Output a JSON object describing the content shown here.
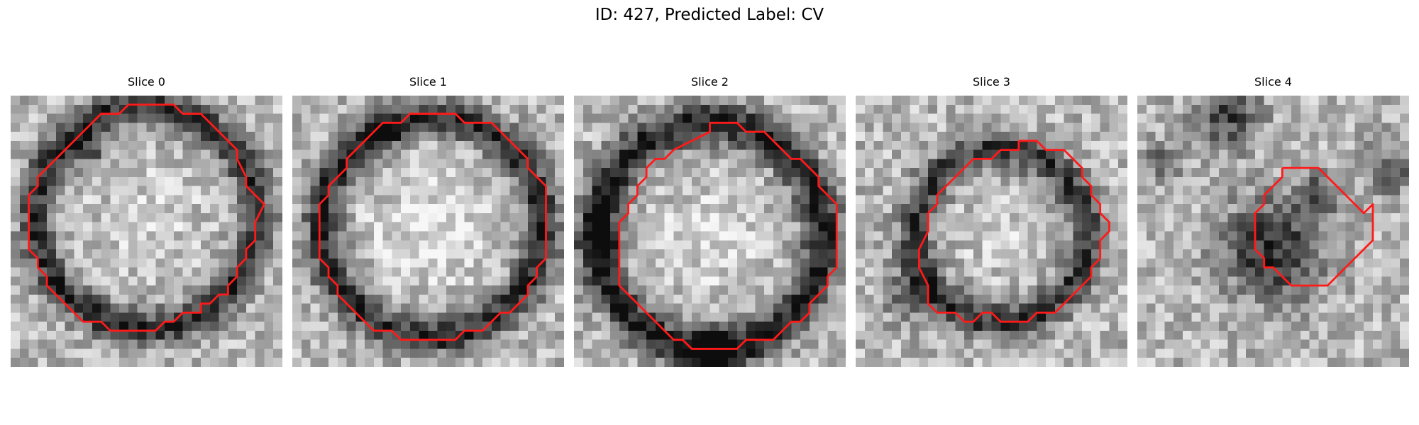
{
  "figure": {
    "title": "ID: 427, Predicted Label: CV"
  },
  "panels": [
    {
      "title": "Slice 0",
      "contour": [
        [
          15,
          1
        ],
        [
          18,
          1
        ],
        [
          19,
          2
        ],
        [
          21,
          2
        ],
        [
          24,
          5
        ],
        [
          25,
          6
        ],
        [
          25,
          7
        ],
        [
          26,
          9
        ],
        [
          26,
          10
        ],
        [
          27,
          11
        ],
        [
          28,
          12
        ],
        [
          27,
          14
        ],
        [
          27,
          15
        ],
        [
          27,
          16
        ],
        [
          26,
          17
        ],
        [
          26,
          18
        ],
        [
          25,
          19
        ],
        [
          25,
          20
        ],
        [
          24,
          21
        ],
        [
          24,
          22
        ],
        [
          23,
          22
        ],
        [
          22,
          23
        ],
        [
          21,
          23
        ],
        [
          21,
          24
        ],
        [
          19,
          24
        ],
        [
          18,
          25
        ],
        [
          17,
          25
        ],
        [
          16,
          26
        ],
        [
          11,
          26
        ],
        [
          10,
          25
        ],
        [
          8,
          25
        ],
        [
          7,
          24
        ],
        [
          6,
          23
        ],
        [
          5,
          22
        ],
        [
          4,
          21
        ],
        [
          4,
          20
        ],
        [
          3,
          19
        ],
        [
          3,
          18
        ],
        [
          2,
          17
        ],
        [
          2,
          15
        ],
        [
          2,
          13
        ],
        [
          2,
          11
        ],
        [
          3,
          10
        ],
        [
          3,
          9
        ],
        [
          4,
          8
        ],
        [
          5,
          7
        ],
        [
          6,
          6
        ],
        [
          7,
          5
        ],
        [
          8,
          4
        ],
        [
          9,
          3
        ],
        [
          10,
          2
        ],
        [
          12,
          2
        ],
        [
          13,
          1
        ],
        [
          15,
          1
        ]
      ]
    },
    {
      "title": "Slice 1",
      "contour": [
        [
          14,
          2
        ],
        [
          18,
          2
        ],
        [
          19,
          3
        ],
        [
          22,
          3
        ],
        [
          23,
          4
        ],
        [
          24,
          5
        ],
        [
          25,
          6
        ],
        [
          26,
          7
        ],
        [
          26,
          8
        ],
        [
          27,
          9
        ],
        [
          28,
          10
        ],
        [
          28,
          11
        ],
        [
          28,
          13
        ],
        [
          28,
          16
        ],
        [
          28,
          18
        ],
        [
          27,
          19
        ],
        [
          27,
          20
        ],
        [
          26,
          21
        ],
        [
          26,
          22
        ],
        [
          25,
          23
        ],
        [
          24,
          24
        ],
        [
          23,
          24
        ],
        [
          22,
          25
        ],
        [
          21,
          26
        ],
        [
          19,
          26
        ],
        [
          18,
          27
        ],
        [
          14,
          27
        ],
        [
          12,
          27
        ],
        [
          11,
          26
        ],
        [
          9,
          26
        ],
        [
          8,
          25
        ],
        [
          7,
          24
        ],
        [
          6,
          23
        ],
        [
          5,
          22
        ],
        [
          5,
          21
        ],
        [
          4,
          20
        ],
        [
          4,
          19
        ],
        [
          3,
          18
        ],
        [
          3,
          16
        ],
        [
          3,
          14
        ],
        [
          3,
          12
        ],
        [
          4,
          11
        ],
        [
          4,
          10
        ],
        [
          5,
          9
        ],
        [
          6,
          8
        ],
        [
          6,
          7
        ],
        [
          7,
          6
        ],
        [
          8,
          5
        ],
        [
          9,
          4
        ],
        [
          10,
          3
        ],
        [
          12,
          3
        ],
        [
          13,
          2
        ],
        [
          14,
          2
        ]
      ]
    },
    {
      "title": "Slice 2",
      "contour": [
        [
          15,
          3
        ],
        [
          18,
          3
        ],
        [
          19,
          4
        ],
        [
          21,
          4
        ],
        [
          22,
          5
        ],
        [
          23,
          6
        ],
        [
          24,
          7
        ],
        [
          25,
          7
        ],
        [
          26,
          8
        ],
        [
          27,
          9
        ],
        [
          27,
          10
        ],
        [
          28,
          11
        ],
        [
          29,
          12
        ],
        [
          29,
          13
        ],
        [
          29,
          15
        ],
        [
          29,
          17
        ],
        [
          29,
          19
        ],
        [
          28,
          20
        ],
        [
          28,
          21
        ],
        [
          27,
          22
        ],
        [
          26,
          23
        ],
        [
          26,
          24
        ],
        [
          25,
          25
        ],
        [
          24,
          25
        ],
        [
          23,
          26
        ],
        [
          22,
          27
        ],
        [
          19,
          27
        ],
        [
          18,
          28
        ],
        [
          13,
          28
        ],
        [
          12,
          27
        ],
        [
          11,
          27
        ],
        [
          10,
          26
        ],
        [
          9,
          25
        ],
        [
          8,
          24
        ],
        [
          7,
          23
        ],
        [
          6,
          22
        ],
        [
          5,
          21
        ],
        [
          5,
          20
        ],
        [
          5,
          18
        ],
        [
          5,
          16
        ],
        [
          5,
          14
        ],
        [
          6,
          13
        ],
        [
          6,
          12
        ],
        [
          7,
          11
        ],
        [
          7,
          10
        ],
        [
          8,
          9
        ],
        [
          8,
          8
        ],
        [
          9,
          7
        ],
        [
          10,
          7
        ],
        [
          11,
          6
        ],
        [
          13,
          5
        ],
        [
          15,
          4
        ],
        [
          15,
          3
        ]
      ]
    },
    {
      "title": "Slice 3",
      "contour": [
        [
          18,
          5
        ],
        [
          20,
          5
        ],
        [
          21,
          6
        ],
        [
          23,
          6
        ],
        [
          24,
          7
        ],
        [
          25,
          8
        ],
        [
          25,
          9
        ],
        [
          26,
          10
        ],
        [
          26,
          11
        ],
        [
          27,
          12
        ],
        [
          27,
          13
        ],
        [
          28,
          14
        ],
        [
          28,
          15
        ],
        [
          27,
          16
        ],
        [
          27,
          17
        ],
        [
          27,
          18
        ],
        [
          26,
          19
        ],
        [
          26,
          20
        ],
        [
          25,
          21
        ],
        [
          24,
          22
        ],
        [
          23,
          23
        ],
        [
          22,
          24
        ],
        [
          20,
          24
        ],
        [
          19,
          25
        ],
        [
          16,
          25
        ],
        [
          15,
          24
        ],
        [
          14,
          24
        ],
        [
          13,
          25
        ],
        [
          12,
          25
        ],
        [
          11,
          24
        ],
        [
          9,
          24
        ],
        [
          8,
          23
        ],
        [
          8,
          21
        ],
        [
          7,
          19
        ],
        [
          7,
          17
        ],
        [
          8,
          15
        ],
        [
          8,
          13
        ],
        [
          9,
          12
        ],
        [
          9,
          11
        ],
        [
          10,
          10
        ],
        [
          11,
          9
        ],
        [
          12,
          8
        ],
        [
          13,
          7
        ],
        [
          15,
          7
        ],
        [
          16,
          6
        ],
        [
          18,
          6
        ],
        [
          18,
          5
        ]
      ]
    },
    {
      "title": "Slice 4",
      "contour": [
        [
          16,
          8
        ],
        [
          20,
          8
        ],
        [
          21,
          9
        ],
        [
          22,
          10
        ],
        [
          23,
          11
        ],
        [
          24,
          12
        ],
        [
          25,
          13
        ],
        [
          26,
          12
        ],
        [
          26,
          14
        ],
        [
          26,
          16
        ],
        [
          25,
          17
        ],
        [
          24,
          18
        ],
        [
          23,
          19
        ],
        [
          22,
          20
        ],
        [
          21,
          21
        ],
        [
          20,
          21
        ],
        [
          18,
          21
        ],
        [
          17,
          21
        ],
        [
          16,
          20
        ],
        [
          15,
          19
        ],
        [
          14,
          19
        ],
        [
          14,
          18
        ],
        [
          13,
          17
        ],
        [
          13,
          16
        ],
        [
          13,
          13
        ],
        [
          14,
          12
        ],
        [
          14,
          11
        ],
        [
          15,
          10
        ],
        [
          16,
          9
        ],
        [
          16,
          8
        ]
      ]
    }
  ],
  "colors": {
    "contour": "#ff1a1a",
    "background": "#ffffff"
  }
}
